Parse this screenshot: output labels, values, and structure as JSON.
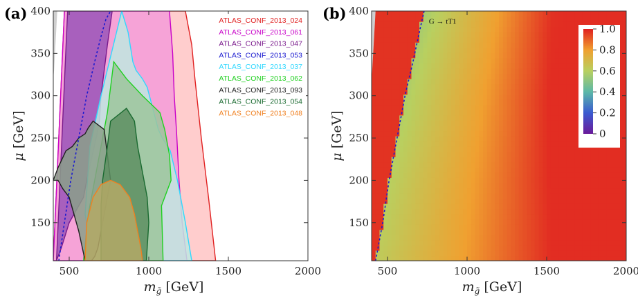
{
  "chart_data": [
    {
      "panel": "(a)",
      "type": "area",
      "xlabel": "m_g̃ [GeV]",
      "ylabel": "μ [GeV]",
      "xlim": [
        400,
        2000
      ],
      "ylim": [
        105,
        400
      ],
      "xticks": [
        500,
        1000,
        1500,
        2000
      ],
      "yticks": [
        150,
        200,
        250,
        300,
        350,
        400
      ],
      "legend_placement": "top-right",
      "series": [
        {
          "name": "ATLAS_CONF_2013_024",
          "color": "#e02020",
          "fill": "#ffc4c4",
          "x": [
            470,
            1230,
            1270,
            1290,
            1330,
            1375,
            1420,
            400
          ],
          "y": [
            400,
            400,
            360,
            320,
            250,
            180,
            105,
            105
          ]
        },
        {
          "name": "ATLAS_CONF_2013_061",
          "color": "#c800c8",
          "fill": "#f59bd8",
          "x": [
            470,
            1130,
            1150,
            1160,
            1175,
            1190,
            1210,
            1240,
            400
          ],
          "y": [
            400,
            400,
            350,
            300,
            255,
            200,
            150,
            105,
            105
          ]
        },
        {
          "name": "ATLAS_CONF_2013_047",
          "color": "#7a1a8c",
          "fill": "#9a55b8",
          "x": [
            490,
            770,
            740,
            720,
            700,
            690,
            670,
            640,
            610,
            590,
            500,
            450,
            420
          ],
          "y": [
            400,
            400,
            360,
            330,
            300,
            270,
            250,
            225,
            200,
            180,
            150,
            120,
            105
          ]
        },
        {
          "name": "ATLAS_CONF_2013_053",
          "color": "#1a1ad0",
          "fill": "none",
          "dashed": true,
          "x": [
            435,
            470,
            510,
            560,
            610,
            660,
            700,
            730,
            760
          ],
          "y": [
            105,
            150,
            200,
            250,
            300,
            340,
            370,
            390,
            400
          ]
        },
        {
          "name": "ATLAS_CONF_2013_037",
          "color": "#30d8ff",
          "fill": "#bfe8e0",
          "x": [
            830,
            870,
            900,
            920,
            960,
            990,
            1060,
            1085,
            1135,
            1180,
            1230,
            1270,
            650,
            600,
            630,
            700
          ],
          "y": [
            400,
            375,
            340,
            330,
            320,
            310,
            260,
            250,
            235,
            200,
            150,
            105,
            105,
            160,
            240,
            300
          ]
        },
        {
          "name": "ATLAS_CONF_2013_062",
          "color": "#20d020",
          "fill": "#9cc69c",
          "x": [
            780,
            860,
            960,
            1070,
            1100,
            1130,
            1140,
            1080,
            1090,
            590,
            620,
            680,
            740
          ],
          "y": [
            340,
            320,
            300,
            280,
            260,
            230,
            200,
            170,
            105,
            105,
            160,
            220,
            280
          ]
        },
        {
          "name": "ATLAS_CONF_2013_093",
          "color": "#202020",
          "fill": "#8aa08a",
          "x": [
            400,
            430,
            480,
            520,
            560,
            600,
            620,
            650,
            720,
            760,
            720,
            700,
            680,
            660,
            640,
            620,
            600,
            560,
            500,
            460,
            430,
            400
          ],
          "y": [
            200,
            215,
            235,
            240,
            250,
            255,
            262,
            270,
            260,
            200,
            160,
            140,
            120,
            110,
            105,
            105,
            105,
            140,
            180,
            190,
            200,
            200
          ]
        },
        {
          "name": "ATLAS_CONF_2013_054",
          "color": "#1a6a30",
          "fill": "#5e8f62",
          "x": [
            760,
            860,
            910,
            930,
            960,
            990,
            1000,
            990,
            985,
            700,
            700,
            710,
            740
          ],
          "y": [
            270,
            285,
            270,
            240,
            210,
            180,
            150,
            120,
            105,
            105,
            170,
            200,
            240
          ]
        },
        {
          "name": "ATLAS_CONF_2013_048",
          "color": "#f08020",
          "fill": "#b4a866",
          "x": [
            650,
            700,
            760,
            820,
            880,
            910,
            930,
            950,
            960,
            600,
            610
          ],
          "y": [
            180,
            195,
            200,
            195,
            180,
            160,
            140,
            120,
            105,
            105,
            150
          ]
        }
      ],
      "excluded_region_color": "#cfcfcf"
    },
    {
      "panel": "(b)",
      "type": "heatmap",
      "xlabel": "m_g̃ [GeV]",
      "ylabel": "μ [GeV]",
      "xlim": [
        400,
        2000
      ],
      "ylim": [
        105,
        400
      ],
      "xticks": [
        500,
        1000,
        1500,
        2000
      ],
      "yticks": [
        150,
        200,
        250,
        300,
        350,
        400
      ],
      "colorbar": {
        "min": 0,
        "max": 1.0,
        "ticks": [
          "0",
          "0.2",
          "0.4",
          "0.6",
          "0.8",
          "1.0"
        ],
        "colors": [
          "#6a1a9a",
          "#3a5ad0",
          "#5cb8a8",
          "#b8d060",
          "#f0a030",
          "#e02020"
        ]
      },
      "annotation": {
        "text": "G → tT1",
        "x": 760,
        "y": 385
      },
      "boundary_line": {
        "color": "#1a1ad0",
        "dashed": true,
        "x": [
          425,
          470,
          510,
          560,
          610,
          660,
          700,
          730
        ],
        "y": [
          105,
          150,
          200,
          250,
          300,
          340,
          375,
          400
        ]
      },
      "value_model": "value increases from about 0.6 near the boundary line to 1.0 far to the right; left of the line ≈ 1.0"
    }
  ],
  "labels": {
    "panel_a": "(a)",
    "panel_b": "(b)",
    "mu_prefix": "μ",
    "gev": "[GeV]",
    "m_gluino_base": "m",
    "m_gluino_sub": "g̃"
  }
}
